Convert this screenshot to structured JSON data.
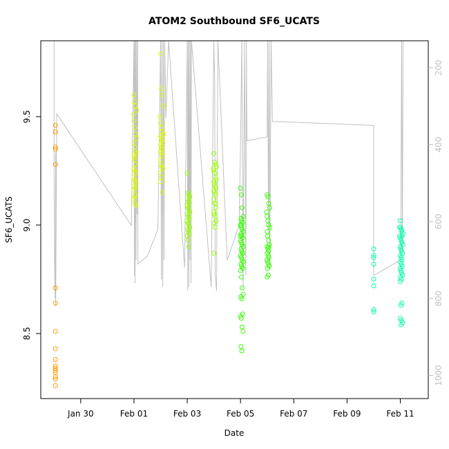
{
  "chart_data": {
    "type": "scatter",
    "title": "ATOM2 Southbound SF6_UCATS",
    "xlabel": "Date",
    "ylabel": "SF6_UCATS",
    "x_ticks": [
      "Jan 30",
      "Feb 01",
      "Feb 03",
      "Feb 05",
      "Feb 07",
      "Feb 09",
      "Feb 11"
    ],
    "x_tick_days": [
      30,
      32,
      34,
      36,
      38,
      40,
      42
    ],
    "xlim_days": [
      28.5,
      43.05
    ],
    "y_ticks": [
      8.5,
      9.0,
      9.5
    ],
    "ylim": [
      8.2,
      9.85
    ],
    "right_axis": {
      "description": "pressure (reversed)",
      "ticks": [
        200,
        400,
        600,
        800,
        1000
      ],
      "range": [
        130,
        1060
      ]
    },
    "series": [
      {
        "color": "#ff9900",
        "x": [
          29.05,
          29.05,
          29.05,
          29.05,
          29.05,
          29.05,
          29.05,
          29.05,
          29.05,
          29.05,
          29.05,
          29.05,
          29.05,
          29.05,
          29.05,
          29.05,
          29.05,
          29.05
        ],
        "y": [
          9.46,
          9.43,
          9.43,
          9.36,
          9.35,
          9.28,
          8.71,
          8.64,
          8.51,
          8.43,
          8.38,
          8.35,
          8.34,
          8.33,
          8.32,
          8.3,
          8.29,
          8.26
        ]
      },
      {
        "color": "#ddff00",
        "x": [
          32.0,
          32.02,
          32.05,
          32.1,
          31.98,
          32.0,
          32.03,
          32.06,
          32.1,
          32.0,
          32.02,
          32.05,
          32.08,
          32.0,
          32.03,
          32.06,
          32.0,
          32.04,
          32.07,
          32.0,
          32.02,
          32.05,
          32.08,
          32.01,
          32.04,
          32.0,
          32.06,
          32.02,
          32.0,
          32.04,
          32.08,
          32.02,
          33.0,
          33.03,
          33.06,
          33.1,
          32.98,
          33.0,
          33.03,
          33.06,
          33.1,
          33.0,
          33.02,
          33.05,
          33.08,
          33.0,
          33.03,
          33.06,
          33.0,
          33.04,
          33.07,
          33.0,
          33.02,
          33.05,
          33.08,
          33.01,
          33.04,
          33.0,
          33.06
        ],
        "y": [
          9.6,
          9.57,
          9.55,
          9.53,
          9.51,
          9.48,
          9.45,
          9.42,
          9.4,
          9.38,
          9.36,
          9.34,
          9.33,
          9.32,
          9.3,
          9.28,
          9.26,
          9.25,
          9.24,
          9.22,
          9.21,
          9.2,
          9.19,
          9.18,
          9.17,
          9.16,
          9.14,
          9.13,
          9.12,
          9.1,
          9.09,
          9.31,
          9.79,
          9.63,
          9.6,
          9.55,
          9.5,
          9.47,
          9.45,
          9.43,
          9.42,
          9.41,
          9.4,
          9.39,
          9.38,
          9.37,
          9.36,
          9.35,
          9.34,
          9.33,
          9.32,
          9.3,
          9.28,
          9.27,
          9.26,
          9.24,
          9.22,
          9.2,
          9.15
        ]
      },
      {
        "color": "#99ff00",
        "x": [
          34.0,
          34.03,
          34.06,
          34.1,
          34.02,
          34.05,
          34.08,
          34.0,
          34.03,
          34.06,
          34.1,
          34.02,
          34.05,
          34.08,
          34.0,
          34.03,
          34.06,
          34.1,
          34.02,
          34.05,
          34.08,
          34.0,
          34.03,
          34.06,
          35.0,
          35.03,
          35.06,
          35.1,
          34.98,
          35.0,
          35.03,
          35.06,
          35.1,
          35.0,
          35.02,
          35.05,
          35.08,
          35.0,
          35.03,
          35.06,
          35.0,
          35.04,
          35.07,
          35.0,
          35.02,
          35.05,
          35.08,
          35.01,
          35.04,
          35.0,
          35.06
        ],
        "y": [
          9.24,
          9.15,
          9.14,
          9.13,
          9.12,
          9.11,
          9.1,
          9.09,
          9.08,
          9.07,
          9.06,
          9.05,
          9.04,
          9.03,
          9.02,
          9.01,
          9.0,
          8.99,
          8.98,
          8.97,
          8.96,
          8.95,
          8.93,
          8.9,
          9.33,
          9.29,
          9.28,
          9.27,
          9.26,
          9.25,
          9.24,
          9.22,
          9.21,
          9.2,
          9.19,
          9.18,
          9.17,
          9.16,
          9.15,
          9.14,
          9.12,
          9.1,
          9.08,
          9.06,
          9.05,
          9.04,
          9.02,
          9.01,
          8.99,
          8.87,
          9.1
        ]
      },
      {
        "color": "#33ff00",
        "x": [
          36.0,
          36.03,
          36.06,
          36.1,
          36.02,
          36.05,
          36.08,
          36.0,
          36.03,
          36.06,
          36.1,
          36.02,
          36.05,
          36.08,
          36.0,
          36.03,
          36.06,
          36.1,
          36.02,
          36.05,
          36.08,
          36.0,
          36.03,
          36.06,
          36.1,
          36.02,
          36.05,
          36.08,
          36.0,
          36.03,
          36.06,
          36.1,
          36.02,
          36.05,
          36.08,
          36.0,
          36.03,
          36.06,
          36.1,
          36.02,
          36.05,
          36.08,
          36.0,
          36.03,
          37.0,
          37.03,
          37.06,
          37.1,
          36.98,
          37.0,
          37.03,
          37.06,
          37.1,
          37.0,
          37.02,
          37.05,
          37.08,
          37.0,
          37.03,
          37.06,
          37.0,
          37.04,
          37.07,
          37.0,
          37.02,
          37.05,
          37.08,
          37.01,
          37.04,
          37.0,
          37.06,
          37.02
        ],
        "y": [
          9.17,
          9.14,
          9.08,
          9.04,
          9.03,
          9.02,
          9.01,
          9.0,
          8.99,
          8.98,
          8.97,
          8.96,
          8.95,
          8.94,
          8.93,
          8.92,
          8.91,
          8.9,
          8.89,
          8.88,
          8.87,
          8.86,
          8.85,
          8.84,
          8.83,
          8.82,
          8.81,
          8.8,
          8.79,
          8.76,
          8.71,
          8.68,
          8.67,
          8.66,
          8.59,
          8.58,
          8.57,
          8.53,
          8.51,
          8.44,
          8.42,
          8.87,
          8.95,
          9.0,
          9.14,
          9.13,
          9.1,
          9.08,
          9.06,
          9.04,
          9.02,
          9.0,
          8.99,
          8.97,
          8.95,
          8.93,
          8.91,
          8.9,
          8.89,
          8.88,
          8.87,
          8.86,
          8.85,
          8.84,
          8.83,
          8.82,
          8.81,
          8.8,
          8.77,
          8.76,
          8.9,
          8.95
        ]
      },
      {
        "color": "#00ffaa",
        "x": [
          41.0,
          41.0,
          41.0,
          41.0,
          41.0,
          41.0,
          41.0,
          41.0,
          42.0,
          41.98,
          42.0,
          42.03,
          42.06,
          42.1,
          41.97,
          42.0,
          42.03,
          42.06,
          42.1,
          42.0,
          42.02,
          42.05,
          42.08,
          42.0,
          42.03,
          42.06,
          42.0,
          42.04,
          42.07,
          42.0,
          42.02,
          42.05,
          42.08,
          42.01,
          42.04,
          42.0,
          42.06,
          42.02,
          42.0,
          42.04,
          42.08,
          42.02,
          42.06,
          42.0
        ],
        "y": [
          8.89,
          8.86,
          8.85,
          8.82,
          8.75,
          8.72,
          8.61,
          8.6,
          9.02,
          8.99,
          8.99,
          8.98,
          8.97,
          8.96,
          8.95,
          8.94,
          8.93,
          8.92,
          8.91,
          8.9,
          8.89,
          8.88,
          8.87,
          8.86,
          8.85,
          8.84,
          8.83,
          8.82,
          8.81,
          8.8,
          8.79,
          8.78,
          8.77,
          8.76,
          8.75,
          8.74,
          8.64,
          8.63,
          8.57,
          8.56,
          8.55,
          8.54,
          8.95,
          8.9
        ]
      }
    ],
    "pressure_trace": {
      "color": "#c0c0c0",
      "x": [
        29.0,
        29.0,
        29.02,
        29.04,
        29.06,
        29.06,
        29.1,
        31.9,
        32.0,
        32.02,
        32.03,
        32.04,
        32.06,
        32.08,
        32.1,
        32.12,
        32.14,
        32.15,
        32.5,
        32.9,
        33.0,
        33.03,
        33.05,
        33.08,
        33.1,
        33.13,
        33.15,
        33.2,
        33.3,
        33.9,
        34.0,
        34.02,
        34.04,
        34.06,
        34.08,
        34.1,
        34.12,
        34.14,
        34.16,
        34.9,
        35.0,
        35.03,
        35.05,
        35.1,
        35.15,
        35.5,
        35.95,
        36.0,
        36.05,
        36.1,
        36.15,
        36.2,
        36.22,
        36.24,
        37.0,
        37.02,
        37.05,
        37.08,
        37.1,
        37.15,
        37.2,
        37.4,
        41.0,
        41.0,
        42.0,
        42.02,
        42.05,
        42.08,
        42.1,
        42.15
      ],
      "p": [
        130,
        480,
        700,
        800,
        420,
        820,
        320,
        610,
        130,
        740,
        130,
        760,
        130,
        700,
        130,
        580,
        130,
        710,
        690,
        620,
        130,
        750,
        130,
        770,
        130,
        700,
        130,
        330,
        130,
        720,
        130,
        780,
        130,
        770,
        130,
        700,
        130,
        760,
        130,
        770,
        130,
        240,
        740,
        780,
        130,
        700,
        610,
        400,
        130,
        770,
        130,
        740,
        130,
        390,
        380,
        130,
        620,
        130,
        720,
        130,
        340,
        340,
        350,
        740,
        700,
        660,
        130,
        680,
        130,
        130
      ]
    }
  }
}
